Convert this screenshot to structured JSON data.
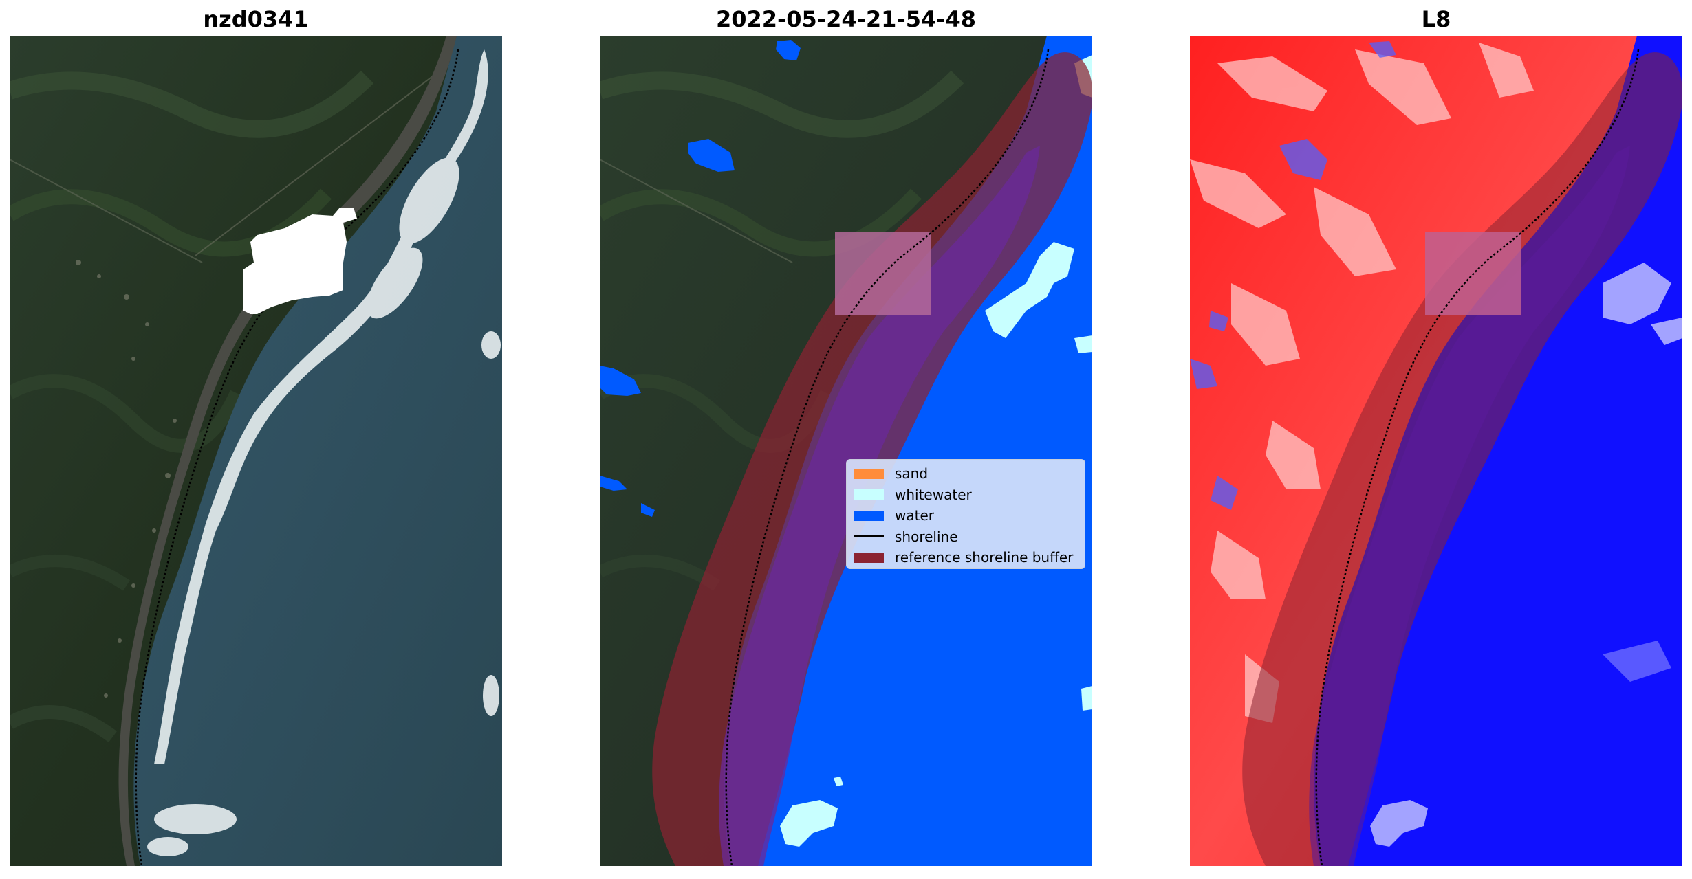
{
  "panels": [
    {
      "title": "nzd0341"
    },
    {
      "title": "2022-05-24-21-54-48"
    },
    {
      "title": "L8"
    }
  ],
  "legend": {
    "items": [
      {
        "label": "sand",
        "color": "#ff8c3a",
        "kind": "patch"
      },
      {
        "label": "whitewater",
        "color": "#c8ffff",
        "kind": "patch"
      },
      {
        "label": "water",
        "color": "#005aff",
        "kind": "patch"
      },
      {
        "label": "shoreline",
        "color": "#000000",
        "kind": "line"
      },
      {
        "label": "reference shoreline buffer",
        "color": "#8b2332",
        "kind": "patch"
      }
    ]
  },
  "colors": {
    "land_rgb": "#26352a",
    "ocean_rgb": "#2d4e5c",
    "classified_water": "#005aff",
    "classified_whitewater": "#c8ffff",
    "buffer": "#8b2332",
    "l8_land": "#ff3030",
    "l8_water": "#1010ff"
  }
}
